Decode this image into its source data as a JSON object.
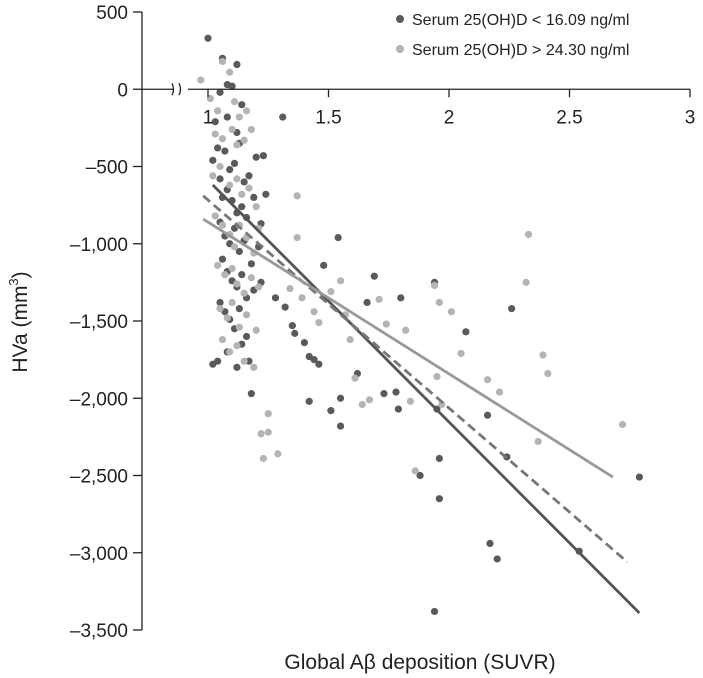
{
  "chart_data": {
    "type": "scatter",
    "xlabel": "Global Aβ deposition (SUVR)",
    "ylabel": "HVa (mm³)",
    "ylabel_main": "HVa (mm",
    "ylabel_sup": "3",
    "ylabel_close": ")",
    "xlim": [
      0.9,
      3.0
    ],
    "ylim": [
      -3500,
      500
    ],
    "x_ticks": [
      1,
      1.5,
      2,
      2.5,
      3
    ],
    "x_tick_labels": [
      "1",
      "1.5",
      "2",
      "2.5",
      "3"
    ],
    "y_ticks": [
      500,
      0,
      -500,
      -1000,
      -1500,
      -2000,
      -2500,
      -3000,
      -3500
    ],
    "y_tick_labels": [
      "500",
      "0",
      "–500",
      "–1,000",
      "–1,500",
      "–2,000",
      "–2,500",
      "–3,000",
      "–3,500"
    ],
    "x_axis_break": true,
    "grid": false,
    "legend_position": "top-right",
    "colors": {
      "low": "#5a5a5a",
      "high": "#b4b4b4",
      "axis": "#222222",
      "line_low": "#555555",
      "line_dashed": "#777777",
      "line_high": "#999999"
    },
    "series": [
      {
        "name": "Serum 25(OH)D < 16.09 ng/ml",
        "color": "#5a5a5a",
        "points": [
          [
            1.0,
            330
          ],
          [
            1.06,
            200
          ],
          [
            1.08,
            30
          ],
          [
            1.1,
            20
          ],
          [
            1.12,
            160
          ],
          [
            1.05,
            -20
          ],
          [
            1.03,
            -210
          ],
          [
            1.08,
            -180
          ],
          [
            1.12,
            -280
          ],
          [
            1.14,
            -100
          ],
          [
            1.02,
            -460
          ],
          [
            1.04,
            -380
          ],
          [
            1.07,
            -400
          ],
          [
            1.09,
            -520
          ],
          [
            1.11,
            -480
          ],
          [
            1.13,
            -350
          ],
          [
            1.15,
            -600
          ],
          [
            1.17,
            -560
          ],
          [
            1.2,
            -440
          ],
          [
            1.23,
            -430
          ],
          [
            1.31,
            -180
          ],
          [
            1.05,
            -580
          ],
          [
            1.06,
            -700
          ],
          [
            1.08,
            -650
          ],
          [
            1.1,
            -720
          ],
          [
            1.12,
            -800
          ],
          [
            1.14,
            -760
          ],
          [
            1.16,
            -830
          ],
          [
            1.19,
            -700
          ],
          [
            1.22,
            -870
          ],
          [
            1.24,
            -680
          ],
          [
            1.05,
            -860
          ],
          [
            1.07,
            -950
          ],
          [
            1.09,
            -1000
          ],
          [
            1.11,
            -900
          ],
          [
            1.13,
            -1050
          ],
          [
            1.15,
            -980
          ],
          [
            1.18,
            -1130
          ],
          [
            1.21,
            -1020
          ],
          [
            1.06,
            -1100
          ],
          [
            1.08,
            -1180
          ],
          [
            1.1,
            -1240
          ],
          [
            1.12,
            -1280
          ],
          [
            1.14,
            -1200
          ],
          [
            1.16,
            -1350
          ],
          [
            1.19,
            -1300
          ],
          [
            1.22,
            -1250
          ],
          [
            1.05,
            -1380
          ],
          [
            1.07,
            -1440
          ],
          [
            1.09,
            -1490
          ],
          [
            1.11,
            -1550
          ],
          [
            1.13,
            -1420
          ],
          [
            1.16,
            -1600
          ],
          [
            1.04,
            -1760
          ],
          [
            1.08,
            -1700
          ],
          [
            1.12,
            -1800
          ],
          [
            1.14,
            -1650
          ],
          [
            1.02,
            -1780
          ],
          [
            1.18,
            -1970
          ],
          [
            1.17,
            -1760
          ],
          [
            1.28,
            -1350
          ],
          [
            1.32,
            -1410
          ],
          [
            1.35,
            -1530
          ],
          [
            1.36,
            -1580
          ],
          [
            1.4,
            -1640
          ],
          [
            1.42,
            -1730
          ],
          [
            1.44,
            -1750
          ],
          [
            1.46,
            -1780
          ],
          [
            1.48,
            -1140
          ],
          [
            1.54,
            -960
          ],
          [
            1.42,
            -2020
          ],
          [
            1.51,
            -2080
          ],
          [
            1.55,
            -2000
          ],
          [
            1.55,
            -2180
          ],
          [
            1.62,
            -1840
          ],
          [
            1.66,
            -1380
          ],
          [
            1.69,
            -1210
          ],
          [
            1.73,
            -1970
          ],
          [
            1.78,
            -1960
          ],
          [
            1.79,
            -2070
          ],
          [
            1.8,
            -1350
          ],
          [
            1.88,
            -2500
          ],
          [
            1.94,
            -1250
          ],
          [
            1.95,
            -2070
          ],
          [
            1.96,
            -2390
          ],
          [
            1.96,
            -2650
          ],
          [
            1.94,
            -3380
          ],
          [
            2.07,
            -1570
          ],
          [
            2.16,
            -2110
          ],
          [
            2.17,
            -2940
          ],
          [
            2.2,
            -3040
          ],
          [
            2.24,
            -2380
          ],
          [
            2.26,
            -1420
          ],
          [
            2.54,
            -2990
          ],
          [
            2.79,
            -2510
          ]
        ]
      },
      {
        "name": "Serum 25(OH)D > 24.30 ng/ml",
        "color": "#b4b4b4",
        "points": [
          [
            0.97,
            60
          ],
          [
            1.06,
            180
          ],
          [
            1.09,
            110
          ],
          [
            1.01,
            -60
          ],
          [
            1.04,
            -140
          ],
          [
            1.11,
            -80
          ],
          [
            1.13,
            -180
          ],
          [
            1.16,
            -140
          ],
          [
            1.03,
            -290
          ],
          [
            1.06,
            -320
          ],
          [
            1.1,
            -260
          ],
          [
            1.12,
            -360
          ],
          [
            1.15,
            -330
          ],
          [
            1.18,
            -260
          ],
          [
            1.02,
            -560
          ],
          [
            1.05,
            -500
          ],
          [
            1.09,
            -620
          ],
          [
            1.12,
            -580
          ],
          [
            1.14,
            -680
          ],
          [
            1.17,
            -640
          ],
          [
            1.2,
            -760
          ],
          [
            1.21,
            -900
          ],
          [
            1.03,
            -820
          ],
          [
            1.06,
            -880
          ],
          [
            1.09,
            -940
          ],
          [
            1.11,
            -1020
          ],
          [
            1.13,
            -880
          ],
          [
            1.16,
            -960
          ],
          [
            1.19,
            -1060
          ],
          [
            1.04,
            -1140
          ],
          [
            1.07,
            -1200
          ],
          [
            1.1,
            -1160
          ],
          [
            1.12,
            -1260
          ],
          [
            1.15,
            -1320
          ],
          [
            1.18,
            -1220
          ],
          [
            1.21,
            -1280
          ],
          [
            1.05,
            -1420
          ],
          [
            1.08,
            -1480
          ],
          [
            1.1,
            -1380
          ],
          [
            1.13,
            -1540
          ],
          [
            1.16,
            -1460
          ],
          [
            1.2,
            -1560
          ],
          [
            1.06,
            -1620
          ],
          [
            1.09,
            -1700
          ],
          [
            1.12,
            -1660
          ],
          [
            1.15,
            -1760
          ],
          [
            1.19,
            -1800
          ],
          [
            1.25,
            -2100
          ],
          [
            1.22,
            -2230
          ],
          [
            1.25,
            -2220
          ],
          [
            1.29,
            -2360
          ],
          [
            1.23,
            -2390
          ],
          [
            1.37,
            -690
          ],
          [
            1.37,
            -960
          ],
          [
            1.34,
            -1290
          ],
          [
            1.39,
            -1350
          ],
          [
            1.44,
            -1440
          ],
          [
            1.46,
            -1510
          ],
          [
            1.51,
            -1310
          ],
          [
            1.55,
            -1240
          ],
          [
            1.57,
            -1460
          ],
          [
            1.59,
            -1620
          ],
          [
            1.61,
            -1870
          ],
          [
            1.64,
            -2040
          ],
          [
            1.67,
            -2010
          ],
          [
            1.71,
            -1360
          ],
          [
            1.74,
            -1520
          ],
          [
            1.82,
            -1560
          ],
          [
            1.84,
            -2020
          ],
          [
            1.86,
            -2470
          ],
          [
            1.94,
            -1270
          ],
          [
            1.95,
            -1860
          ],
          [
            1.96,
            -1380
          ],
          [
            1.97,
            -2040
          ],
          [
            2.01,
            -1440
          ],
          [
            2.05,
            -1710
          ],
          [
            2.16,
            -1880
          ],
          [
            2.21,
            -1960
          ],
          [
            2.32,
            -1250
          ],
          [
            2.33,
            -940
          ],
          [
            2.37,
            -2280
          ],
          [
            2.39,
            -1720
          ],
          [
            2.41,
            -1840
          ],
          [
            2.72,
            -2170
          ]
        ]
      }
    ],
    "regression_lines": [
      {
        "style": "solid",
        "color": "#555555",
        "x": [
          1.02,
          2.79
        ],
        "y": [
          -620,
          -3390
        ]
      },
      {
        "style": "dashed",
        "color": "#777777",
        "x": [
          0.98,
          2.74
        ],
        "y": [
          -690,
          -3060
        ]
      },
      {
        "style": "solid",
        "color": "#999999",
        "x": [
          0.98,
          2.68
        ],
        "y": [
          -840,
          -2510
        ]
      }
    ]
  }
}
